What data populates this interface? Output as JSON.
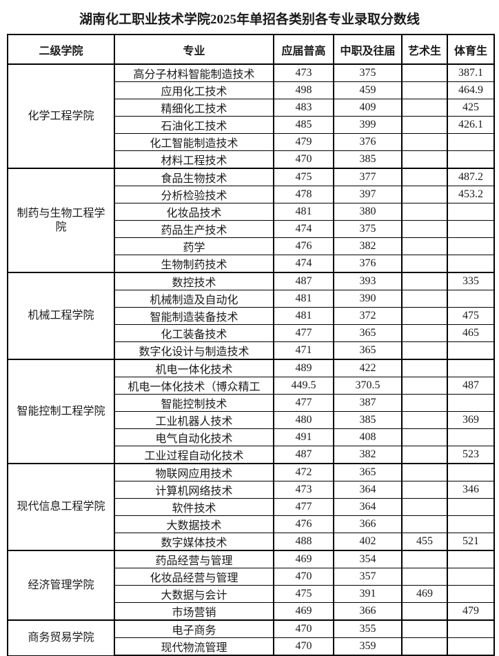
{
  "title": "湖南化工职业技术学院2025年单招各类别各专业录取分数线",
  "table": {
    "headers": [
      "二级学院",
      "专业",
      "应届普高",
      "中职及往届",
      "艺术生",
      "体育生"
    ],
    "groups": [
      {
        "college": "化学工程学院",
        "rows": [
          {
            "major": "高分子材料智能制造技术",
            "regular": "473",
            "vocational": "375",
            "art": "",
            "sports": "387.1"
          },
          {
            "major": "应用化工技术",
            "regular": "498",
            "vocational": "459",
            "art": "",
            "sports": "464.9"
          },
          {
            "major": "精细化工技术",
            "regular": "483",
            "vocational": "409",
            "art": "",
            "sports": "425"
          },
          {
            "major": "石油化工技术",
            "regular": "485",
            "vocational": "399",
            "art": "",
            "sports": "426.1"
          },
          {
            "major": "化工智能制造技术",
            "regular": "479",
            "vocational": "376",
            "art": "",
            "sports": ""
          },
          {
            "major": "材料工程技术",
            "regular": "470",
            "vocational": "385",
            "art": "",
            "sports": ""
          }
        ]
      },
      {
        "college": "制药与生物工程学院",
        "rows": [
          {
            "major": "食品生物技术",
            "regular": "475",
            "vocational": "377",
            "art": "",
            "sports": "487.2"
          },
          {
            "major": "分析检验技术",
            "regular": "478",
            "vocational": "397",
            "art": "",
            "sports": "453.2"
          },
          {
            "major": "化妆品技术",
            "regular": "481",
            "vocational": "380",
            "art": "",
            "sports": ""
          },
          {
            "major": "药品生产技术",
            "regular": "474",
            "vocational": "375",
            "art": "",
            "sports": ""
          },
          {
            "major": "药学",
            "regular": "476",
            "vocational": "382",
            "art": "",
            "sports": ""
          },
          {
            "major": "生物制药技术",
            "regular": "474",
            "vocational": "376",
            "art": "",
            "sports": ""
          }
        ]
      },
      {
        "college": "机械工程学院",
        "rows": [
          {
            "major": "数控技术",
            "regular": "487",
            "vocational": "393",
            "art": "",
            "sports": "335"
          },
          {
            "major": "机械制造及自动化",
            "regular": "481",
            "vocational": "390",
            "art": "",
            "sports": ""
          },
          {
            "major": "智能制造装备技术",
            "regular": "481",
            "vocational": "372",
            "art": "",
            "sports": "475"
          },
          {
            "major": "化工装备技术",
            "regular": "477",
            "vocational": "365",
            "art": "",
            "sports": "465"
          },
          {
            "major": "数字化设计与制造技术",
            "regular": "471",
            "vocational": "365",
            "art": "",
            "sports": ""
          }
        ]
      },
      {
        "college": "智能控制工程学院",
        "rows": [
          {
            "major": "机电一体化技术",
            "regular": "489",
            "vocational": "422",
            "art": "",
            "sports": ""
          },
          {
            "major": "机电一体化技术（博众精工",
            "regular": "449.5",
            "vocational": "370.5",
            "art": "",
            "sports": "487"
          },
          {
            "major": "智能控制技术",
            "regular": "477",
            "vocational": "387",
            "art": "",
            "sports": ""
          },
          {
            "major": "工业机器人技术",
            "regular": "480",
            "vocational": "385",
            "art": "",
            "sports": "369"
          },
          {
            "major": "电气自动化技术",
            "regular": "491",
            "vocational": "408",
            "art": "",
            "sports": ""
          },
          {
            "major": "工业过程自动化技术",
            "regular": "487",
            "vocational": "382",
            "art": "",
            "sports": "523"
          }
        ]
      },
      {
        "college": "现代信息工程学院",
        "rows": [
          {
            "major": "物联网应用技术",
            "regular": "472",
            "vocational": "365",
            "art": "",
            "sports": ""
          },
          {
            "major": "计算机网络技术",
            "regular": "473",
            "vocational": "364",
            "art": "",
            "sports": "346"
          },
          {
            "major": "软件技术",
            "regular": "477",
            "vocational": "364",
            "art": "",
            "sports": ""
          },
          {
            "major": "大数据技术",
            "regular": "476",
            "vocational": "366",
            "art": "",
            "sports": ""
          },
          {
            "major": "数字媒体技术",
            "regular": "488",
            "vocational": "402",
            "art": "455",
            "sports": "521"
          }
        ]
      },
      {
        "college": "经济管理学院",
        "rows": [
          {
            "major": "药品经营与管理",
            "regular": "469",
            "vocational": "354",
            "art": "",
            "sports": ""
          },
          {
            "major": "化妆品经营与管理",
            "regular": "470",
            "vocational": "357",
            "art": "",
            "sports": ""
          },
          {
            "major": "大数据与会计",
            "regular": "475",
            "vocational": "391",
            "art": "469",
            "sports": ""
          },
          {
            "major": "市场营销",
            "regular": "469",
            "vocational": "366",
            "art": "",
            "sports": "479"
          }
        ]
      },
      {
        "college": "商务贸易学院",
        "rows": [
          {
            "major": "电子商务",
            "regular": "470",
            "vocational": "355",
            "art": "",
            "sports": ""
          },
          {
            "major": "现代物流管理",
            "regular": "470",
            "vocational": "359",
            "art": "",
            "sports": ""
          }
        ]
      }
    ]
  }
}
